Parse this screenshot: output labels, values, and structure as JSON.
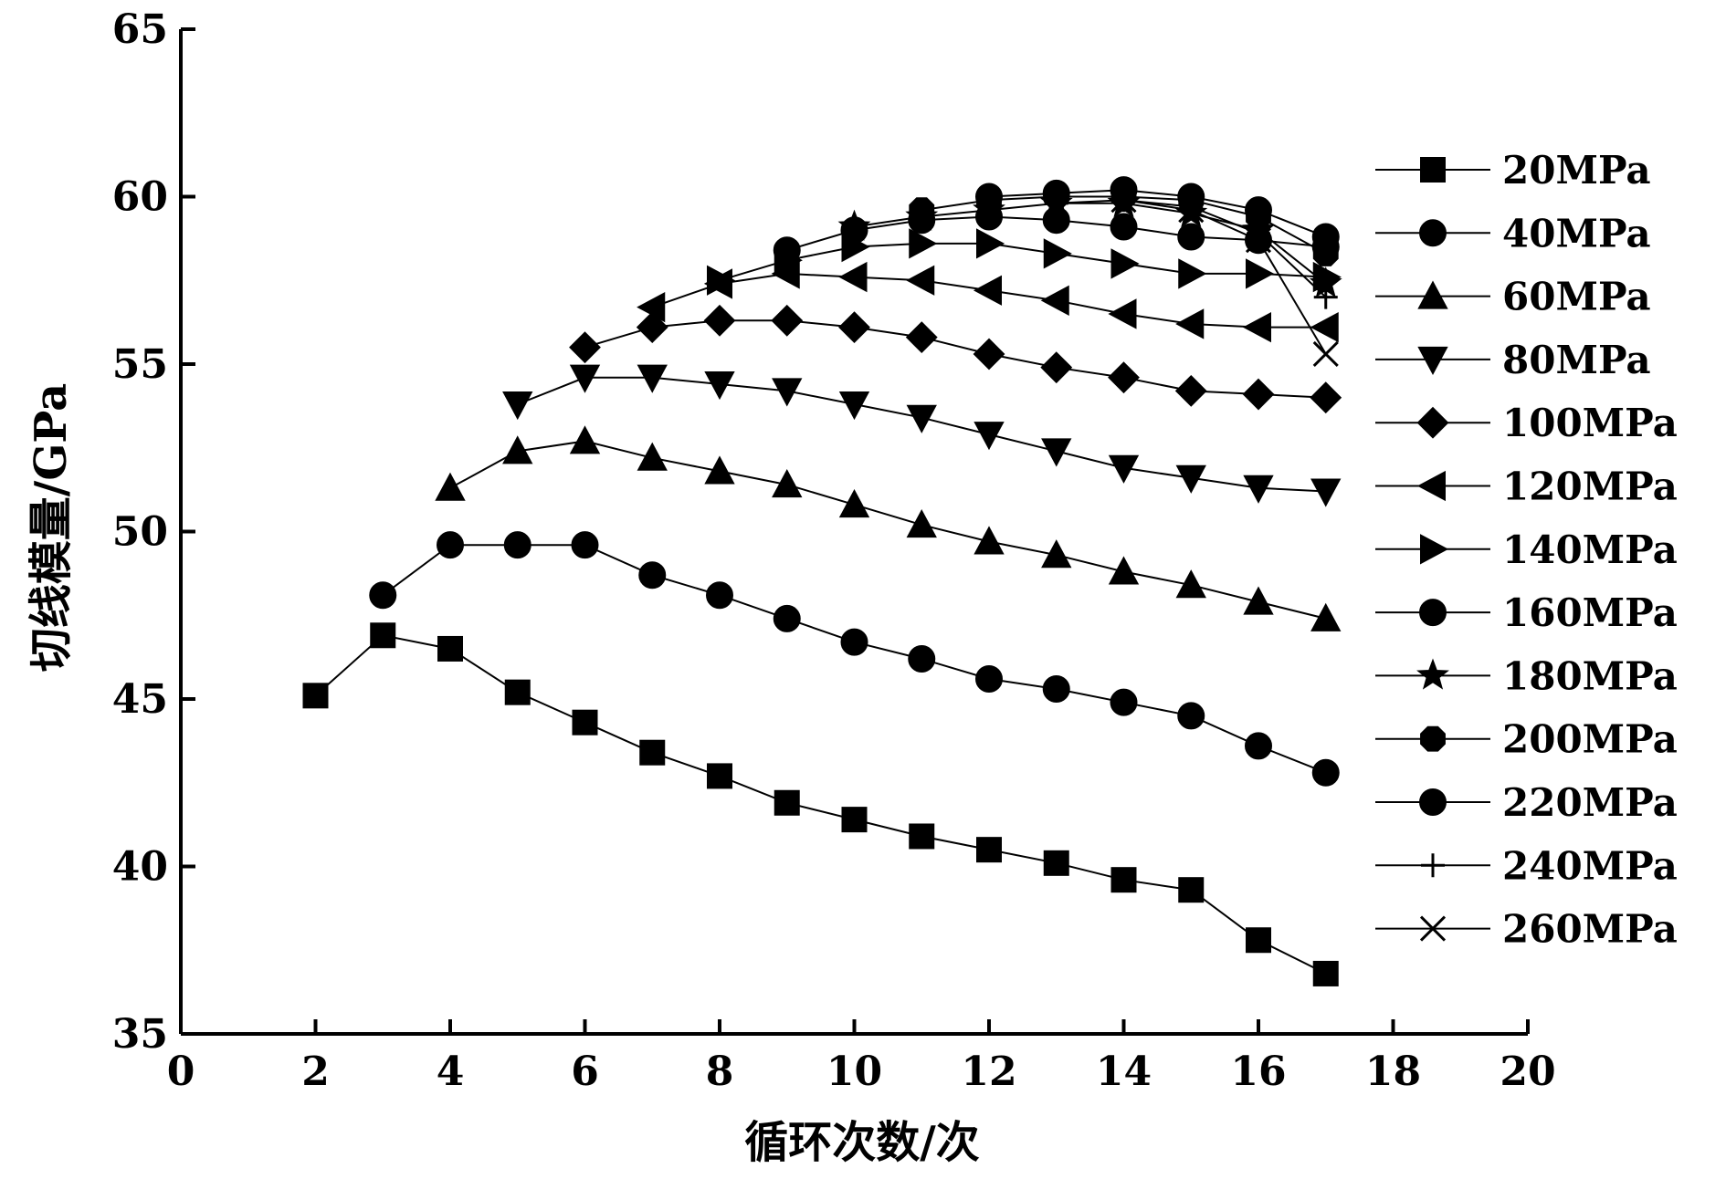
{
  "chart_data": {
    "type": "line",
    "xlabel": "循环次数/次",
    "ylabel": "切线模量/GPa",
    "xlim": [
      0,
      20
    ],
    "ylim": [
      35,
      65
    ],
    "x_ticks": [
      0,
      2,
      4,
      6,
      8,
      10,
      12,
      14,
      16,
      18,
      20
    ],
    "y_ticks": [
      35,
      40,
      45,
      50,
      55,
      60,
      65
    ],
    "grid": false,
    "legend_position": "right",
    "color": "#000000",
    "series": [
      {
        "name": "20MPa",
        "marker": "square",
        "x": [
          2,
          3,
          4,
          5,
          6,
          7,
          8,
          9,
          10,
          11,
          12,
          13,
          14,
          15,
          16,
          17
        ],
        "y": [
          45.1,
          46.9,
          46.5,
          45.2,
          44.3,
          43.4,
          42.7,
          41.9,
          41.4,
          40.9,
          40.5,
          40.1,
          39.6,
          39.3,
          37.8,
          36.8
        ]
      },
      {
        "name": "40MPa",
        "marker": "circle",
        "x": [
          3,
          4,
          5,
          6,
          7,
          8,
          9,
          10,
          11,
          12,
          13,
          14,
          15,
          16,
          17
        ],
        "y": [
          48.1,
          49.6,
          49.6,
          49.6,
          48.7,
          48.1,
          47.4,
          46.7,
          46.2,
          45.6,
          45.3,
          44.9,
          44.5,
          43.6,
          42.8
        ]
      },
      {
        "name": "60MPa",
        "marker": "triangle-up",
        "x": [
          4,
          5,
          6,
          7,
          8,
          9,
          10,
          11,
          12,
          13,
          14,
          15,
          16,
          17
        ],
        "y": [
          51.3,
          52.4,
          52.7,
          52.2,
          51.8,
          51.4,
          50.8,
          50.2,
          49.7,
          49.3,
          48.8,
          48.4,
          47.9,
          47.4
        ]
      },
      {
        "name": "80MPa",
        "marker": "triangle-down",
        "x": [
          5,
          6,
          7,
          8,
          9,
          10,
          11,
          12,
          13,
          14,
          15,
          16,
          17
        ],
        "y": [
          53.8,
          54.6,
          54.6,
          54.4,
          54.2,
          53.8,
          53.4,
          52.9,
          52.4,
          51.9,
          51.6,
          51.3,
          51.2
        ]
      },
      {
        "name": "100MPa",
        "marker": "diamond",
        "x": [
          6,
          7,
          8,
          9,
          10,
          11,
          12,
          13,
          14,
          15,
          16,
          17
        ],
        "y": [
          55.5,
          56.1,
          56.3,
          56.3,
          56.1,
          55.8,
          55.3,
          54.9,
          54.6,
          54.2,
          54.1,
          54.0
        ]
      },
      {
        "name": "120MPa",
        "marker": "triangle-left",
        "x": [
          7,
          8,
          9,
          10,
          11,
          12,
          13,
          14,
          15,
          16,
          17
        ],
        "y": [
          56.7,
          57.4,
          57.7,
          57.6,
          57.5,
          57.2,
          56.9,
          56.5,
          56.2,
          56.1,
          56.1
        ]
      },
      {
        "name": "140MPa",
        "marker": "triangle-right",
        "x": [
          8,
          9,
          10,
          11,
          12,
          13,
          14,
          15,
          16,
          17
        ],
        "y": [
          57.5,
          58.1,
          58.5,
          58.6,
          58.6,
          58.3,
          58.0,
          57.7,
          57.7,
          57.6
        ]
      },
      {
        "name": "160MPa",
        "marker": "circle",
        "x": [
          9,
          10,
          11,
          12,
          13,
          14,
          15,
          16,
          17
        ],
        "y": [
          58.4,
          59.0,
          59.3,
          59.4,
          59.3,
          59.1,
          58.8,
          58.7,
          58.5
        ]
      },
      {
        "name": "180MPa",
        "marker": "star",
        "x": [
          10,
          11,
          12,
          13,
          14,
          15,
          16,
          17
        ],
        "y": [
          59.1,
          59.4,
          59.6,
          59.8,
          59.8,
          59.5,
          59.0,
          57.4
        ]
      },
      {
        "name": "200MPa",
        "marker": "octagon",
        "x": [
          11,
          12,
          13,
          14,
          15,
          16,
          17
        ],
        "y": [
          59.6,
          59.9,
          60.0,
          60.0,
          59.9,
          59.4,
          58.3
        ]
      },
      {
        "name": "220MPa",
        "marker": "circle",
        "x": [
          12,
          13,
          14,
          15,
          16,
          17
        ],
        "y": [
          60.0,
          60.1,
          60.2,
          60.0,
          59.6,
          58.8
        ]
      },
      {
        "name": "240MPa",
        "marker": "plus",
        "x": [
          13,
          14,
          15,
          16,
          17
        ],
        "y": [
          59.8,
          59.9,
          59.7,
          58.9,
          57.0
        ]
      },
      {
        "name": "260MPa",
        "marker": "x",
        "x": [
          14,
          15,
          16,
          17
        ],
        "y": [
          59.9,
          59.6,
          58.7,
          55.3
        ]
      }
    ]
  }
}
